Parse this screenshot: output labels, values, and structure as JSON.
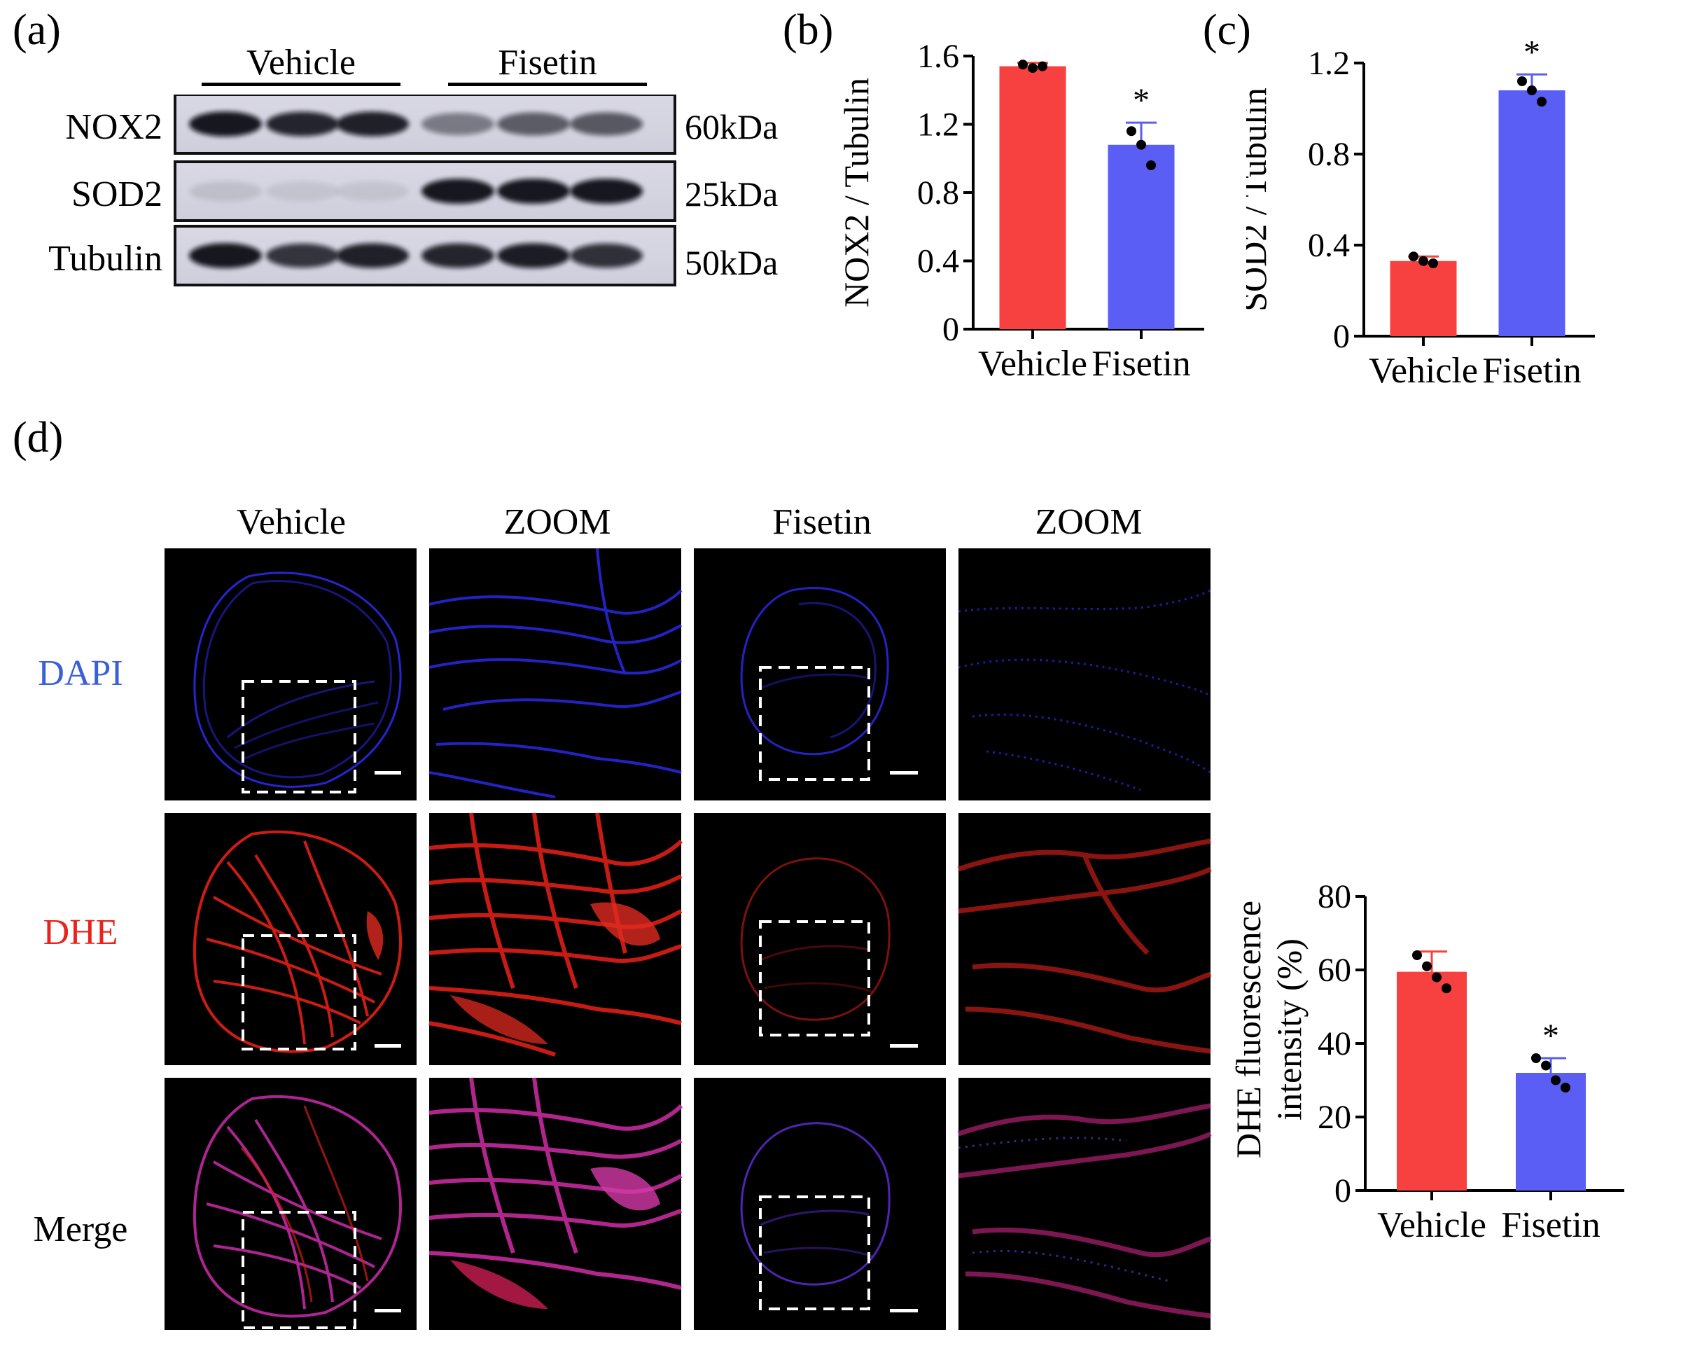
{
  "panels": {
    "a": {
      "label": "(a)",
      "groups": [
        "Vehicle",
        "Fisetin"
      ],
      "bands": [
        {
          "name": "NOX2",
          "kda": "60kDa",
          "intensity": [
            0.95,
            0.88,
            0.9,
            0.45,
            0.6,
            0.62
          ]
        },
        {
          "name": "SOD2",
          "kda": "25kDa",
          "intensity": [
            0.1,
            0.08,
            0.08,
            0.95,
            0.95,
            0.95
          ]
        },
        {
          "name": "Tubulin",
          "kda": "50kDa",
          "intensity": [
            0.95,
            0.8,
            0.9,
            0.88,
            0.92,
            0.82
          ]
        }
      ]
    },
    "b": {
      "label": "(b)"
    },
    "c": {
      "label": "(c)"
    },
    "d": {
      "label": "(d)",
      "col_headers": [
        "Vehicle",
        "ZOOM",
        "Fisetin",
        "ZOOM"
      ],
      "row_labels": [
        {
          "text": "DAPI",
          "color": "#3b5fd6"
        },
        {
          "text": "DHE",
          "color": "#e8231c"
        },
        {
          "text": "Merge",
          "color": "#000000"
        }
      ]
    }
  },
  "chart_data": [
    {
      "id": "b",
      "type": "bar",
      "categories": [
        "Vehicle",
        "Fisetin"
      ],
      "values": [
        1.54,
        1.08
      ],
      "errors": [
        0.02,
        0.13
      ],
      "points": [
        [
          1.55,
          1.53,
          1.54
        ],
        [
          1.16,
          1.08,
          0.96
        ]
      ],
      "significance": [
        "",
        "*"
      ],
      "colors": [
        "#f74040",
        "#5a5ef5"
      ],
      "ylabel": "NOX2 / Tubulin",
      "ylim": [
        0,
        1.6
      ],
      "yticks": [
        0,
        0.4,
        0.8,
        1.2,
        1.6
      ],
      "ytick_labels": [
        "0",
        "0.4",
        "0.8",
        "1.2",
        "1.6"
      ],
      "ytick_decimals": 1
    },
    {
      "id": "c",
      "type": "bar",
      "categories": [
        "Vehicle",
        "Fisetin"
      ],
      "values": [
        0.33,
        1.08
      ],
      "errors": [
        0.02,
        0.07
      ],
      "points": [
        [
          0.35,
          0.33,
          0.32
        ],
        [
          1.12,
          1.08,
          1.03
        ]
      ],
      "significance": [
        "",
        "*"
      ],
      "colors": [
        "#f74040",
        "#5a5ef5"
      ],
      "ylabel": "SOD2 / Tubulin",
      "ylim": [
        0,
        1.2
      ],
      "yticks": [
        0,
        0.4,
        0.8,
        1.2
      ],
      "ytick_labels": [
        "0",
        "0.4",
        "0.8",
        "1.2"
      ],
      "ytick_decimals": 1
    },
    {
      "id": "d",
      "type": "bar",
      "categories": [
        "Vehicle",
        "Fisetin"
      ],
      "values": [
        59.5,
        32.0
      ],
      "errors": [
        5.5,
        4.0
      ],
      "points": [
        [
          64,
          61,
          58,
          55
        ],
        [
          36,
          34,
          30,
          28
        ]
      ],
      "significance": [
        "",
        "*"
      ],
      "colors": [
        "#f74040",
        "#5a5ef5"
      ],
      "ylabel_lines": [
        "DHE fluorescence",
        "intensity  (%)"
      ],
      "ylim": [
        0,
        80
      ],
      "yticks": [
        0,
        20,
        40,
        60,
        80
      ],
      "ytick_labels": [
        "0",
        "20",
        "40",
        "60",
        "80"
      ],
      "ytick_decimals": 0
    }
  ]
}
